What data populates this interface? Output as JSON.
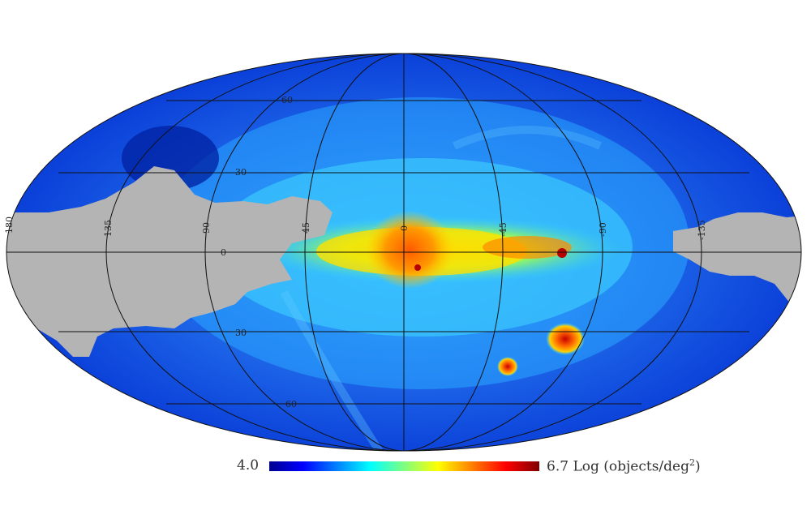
{
  "colorbar": {
    "min_label": "4.0",
    "max_label": "6.7",
    "unit_label": "Log (objects/deg",
    "unit_sup": "2",
    "unit_close": ")",
    "stops": [
      "#00008f",
      "#0000ff",
      "#0080ff",
      "#00ffff",
      "#80ff80",
      "#ffff00",
      "#ff8000",
      "#ff0000",
      "#800000"
    ]
  },
  "grid_labels": {
    "lat_north_60": "60",
    "lat_north_30": "30",
    "lat_south_30": "30",
    "lat_south_60": "60",
    "lon_0": "0",
    "lon_45": "45",
    "lon_90": "90",
    "lon_135": "135",
    "lon_180": "180",
    "lon_m45": "-45",
    "lon_m90": "-90",
    "lon_m135": "-135",
    "equator_0": "0"
  },
  "colors": {
    "no_data": "#b4b4b4",
    "background": "#1a5cf0"
  }
}
